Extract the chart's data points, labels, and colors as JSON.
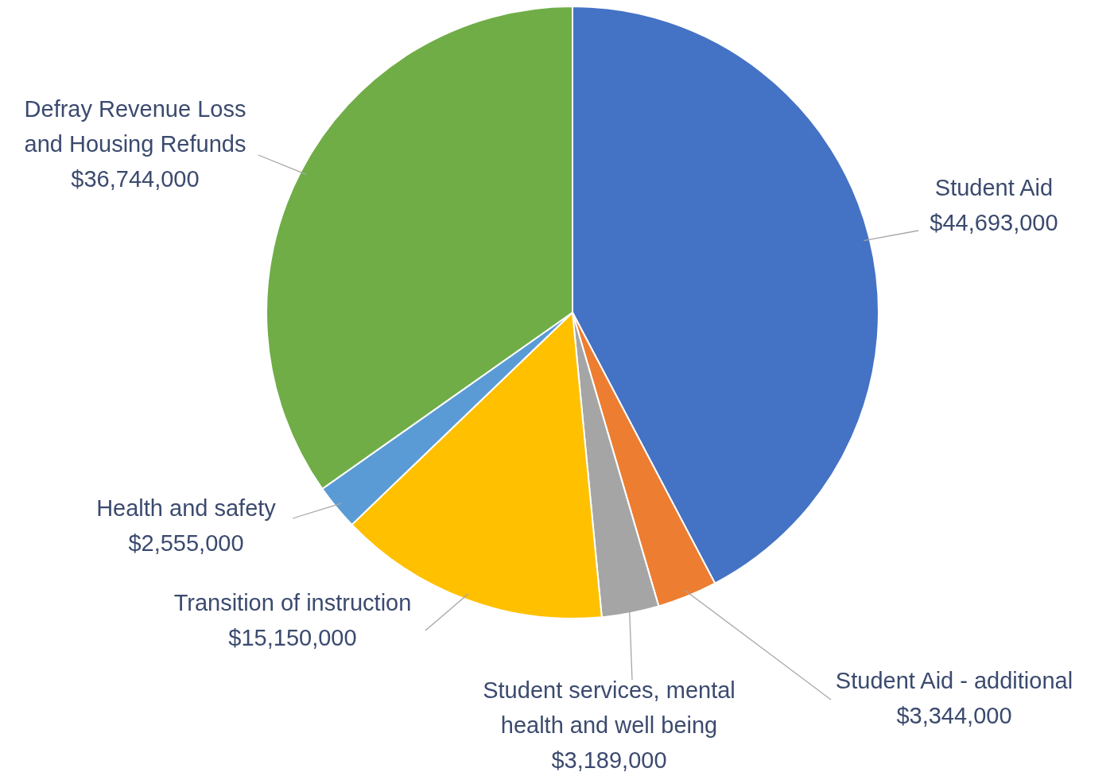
{
  "chart_data": {
    "type": "pie",
    "categories": [
      "Student Aid",
      "Student Aid - additional",
      "Student services, mental health and well being",
      "Transition of instruction",
      "Health and safety",
      "Defray Revenue Loss and Housing Refunds"
    ],
    "values": [
      44693000,
      3344000,
      3189000,
      15150000,
      2555000,
      36744000
    ],
    "colors": [
      "#4472c4",
      "#ed7d31",
      "#a5a5a5",
      "#ffc000",
      "#5b9bd5",
      "#70ad47"
    ],
    "value_labels": [
      "$44,693,000",
      "$3,344,000",
      "$3,189,000",
      "$15,150,000",
      "$2,555,000",
      "$36,744,000"
    ]
  }
}
